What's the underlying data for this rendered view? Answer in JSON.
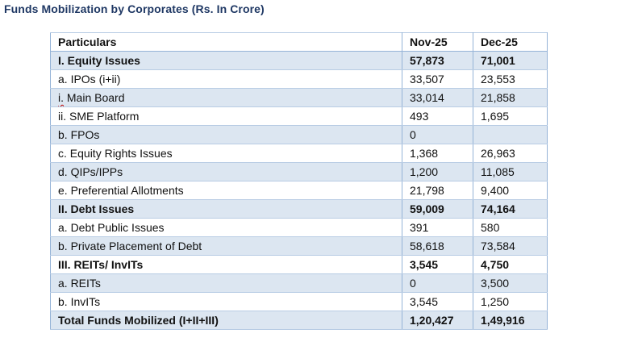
{
  "title": "Funds Mobilization by Corporates (Rs. In Crore)",
  "colors": {
    "title_text": "#1F3864",
    "row_shade": "#DCE6F1",
    "border_vertical": "#95B3D7",
    "border_horizontal": "#B8CCE4",
    "spellcheck_squiggle": "#C00000",
    "body_text": "#111111"
  },
  "table": {
    "columns": [
      "Particulars",
      "Nov-25",
      "Dec-25"
    ],
    "rows": [
      {
        "label": "I. Equity Issues",
        "values": [
          "57,873",
          "71,001"
        ],
        "bold": true,
        "shaded": true
      },
      {
        "label": "a. IPOs (i+ii)",
        "values": [
          "33,507",
          "23,553"
        ],
        "bold": false,
        "shaded": false
      },
      {
        "label": "i. Main Board",
        "values": [
          "33,014",
          "21,858"
        ],
        "bold": false,
        "shaded": true,
        "spellcheck_word": "i."
      },
      {
        "label": "ii. SME Platform",
        "values": [
          "493",
          "1,695"
        ],
        "bold": false,
        "shaded": false,
        "indent": true
      },
      {
        "label": "b. FPOs",
        "values": [
          "0",
          ""
        ],
        "bold": false,
        "shaded": true
      },
      {
        "label": "c. Equity Rights Issues",
        "values": [
          "1,368",
          "26,963"
        ],
        "bold": false,
        "shaded": false
      },
      {
        "label": "d. QIPs/IPPs",
        "values": [
          "1,200",
          "11,085"
        ],
        "bold": false,
        "shaded": true
      },
      {
        "label": "e. Preferential Allotments",
        "values": [
          "21,798",
          "9,400"
        ],
        "bold": false,
        "shaded": false
      },
      {
        "label": "II. Debt Issues",
        "values": [
          "59,009",
          "74,164"
        ],
        "bold": true,
        "shaded": true
      },
      {
        "label": "a. Debt Public Issues",
        "values": [
          "391",
          "580"
        ],
        "bold": false,
        "shaded": false
      },
      {
        "label": "b. Private Placement of Debt",
        "values": [
          "58,618",
          "73,584"
        ],
        "bold": false,
        "shaded": true
      },
      {
        "label": "III. REITs/ InvITs",
        "values": [
          "3,545",
          "4,750"
        ],
        "bold": true,
        "shaded": false
      },
      {
        "label": "a. REITs",
        "values": [
          "0",
          "3,500"
        ],
        "bold": false,
        "shaded": true
      },
      {
        "label": "b. InvITs",
        "values": [
          "3,545",
          "1,250"
        ],
        "bold": false,
        "shaded": false
      },
      {
        "label": "Total Funds Mobilized (I+II+III)",
        "values": [
          "1,20,427",
          "1,49,916"
        ],
        "bold": true,
        "shaded": true
      }
    ]
  }
}
